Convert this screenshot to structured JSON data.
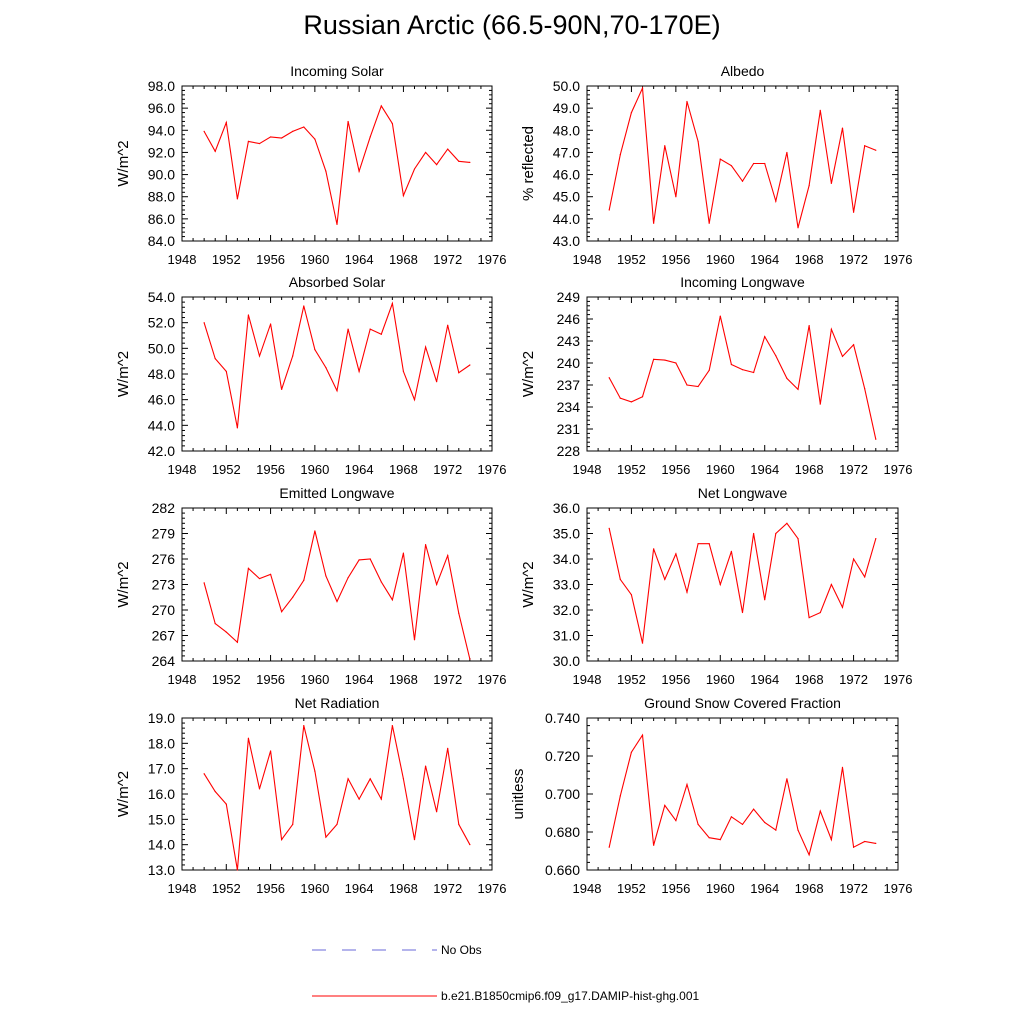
{
  "page": {
    "title": "Russian Arctic (66.5-90N,70-170E)"
  },
  "legend": {
    "entries": [
      {
        "label": "No Obs",
        "color": "#6a6ad8",
        "style": "dashed"
      },
      {
        "label": "b.e21.B1850cmip6.f09_g17.DAMIP-hist-ghg.001",
        "color": "#ff0000",
        "style": "solid"
      }
    ]
  },
  "chart_data": [
    {
      "type": "line",
      "title": "Incoming Solar",
      "ylabel": "W/m^2",
      "xlim": [
        1948,
        1976
      ],
      "ylim": [
        84,
        98
      ],
      "xticks": [
        "1948",
        "1952",
        "1956",
        "1960",
        "1964",
        "1968",
        "1972",
        "1976"
      ],
      "yticks": [
        "84.0",
        "86.0",
        "88.0",
        "90.0",
        "92.0",
        "94.0",
        "96.0",
        "98.0"
      ],
      "x": [
        1950,
        1951,
        1952,
        1953,
        1954,
        1955,
        1956,
        1957,
        1958,
        1959,
        1960,
        1961,
        1962,
        1963,
        1964,
        1965,
        1966,
        1967,
        1968,
        1969,
        1970,
        1971,
        1972,
        1973,
        1974
      ],
      "series": [
        {
          "color": "#ff0000",
          "values": [
            93.9,
            92.1,
            94.7,
            87.8,
            93.0,
            92.8,
            93.4,
            93.3,
            93.9,
            94.3,
            93.2,
            90.3,
            85.5,
            94.8,
            90.3,
            93.4,
            96.2,
            94.6,
            88.1,
            90.5,
            92.0,
            90.9,
            92.3,
            91.2,
            91.1
          ]
        }
      ]
    },
    {
      "type": "line",
      "title": "Albedo",
      "ylabel": "% reflected",
      "xlim": [
        1948,
        1976
      ],
      "ylim": [
        43,
        50
      ],
      "xticks": [
        "1948",
        "1952",
        "1956",
        "1960",
        "1964",
        "1968",
        "1972",
        "1976"
      ],
      "yticks": [
        "43.0",
        "44.0",
        "45.0",
        "46.0",
        "47.0",
        "48.0",
        "49.0",
        "50.0"
      ],
      "x": [
        1950,
        1951,
        1952,
        1953,
        1954,
        1955,
        1956,
        1957,
        1958,
        1959,
        1960,
        1961,
        1962,
        1963,
        1964,
        1965,
        1966,
        1967,
        1968,
        1969,
        1970,
        1971,
        1972,
        1973,
        1974
      ],
      "series": [
        {
          "color": "#ff0000",
          "values": [
            44.4,
            46.9,
            48.8,
            49.9,
            43.8,
            47.3,
            45.0,
            49.3,
            47.5,
            43.8,
            46.7,
            46.4,
            45.7,
            46.5,
            46.5,
            44.8,
            47.0,
            43.6,
            45.5,
            48.9,
            45.6,
            48.1,
            44.3,
            47.3,
            47.1
          ]
        }
      ]
    },
    {
      "type": "line",
      "title": "Absorbed Solar",
      "ylabel": "W/m^2",
      "xlim": [
        1948,
        1976
      ],
      "ylim": [
        42,
        54
      ],
      "xticks": [
        "1948",
        "1952",
        "1956",
        "1960",
        "1964",
        "1968",
        "1972",
        "1976"
      ],
      "yticks": [
        "42.0",
        "44.0",
        "46.0",
        "48.0",
        "50.0",
        "52.0",
        "54.0"
      ],
      "x": [
        1950,
        1951,
        1952,
        1953,
        1954,
        1955,
        1956,
        1957,
        1958,
        1959,
        1960,
        1961,
        1962,
        1963,
        1964,
        1965,
        1966,
        1967,
        1968,
        1969,
        1970,
        1971,
        1972,
        1973,
        1974
      ],
      "series": [
        {
          "color": "#ff0000",
          "values": [
            52.0,
            49.2,
            48.2,
            43.8,
            52.6,
            49.4,
            51.9,
            46.8,
            49.4,
            53.3,
            49.9,
            48.5,
            46.7,
            51.5,
            48.2,
            51.5,
            51.1,
            53.5,
            48.2,
            46.0,
            50.1,
            47.4,
            51.8,
            48.1,
            48.7
          ]
        }
      ]
    },
    {
      "type": "line",
      "title": "Incoming Longwave",
      "ylabel": "W/m^2",
      "xlim": [
        1948,
        1976
      ],
      "ylim": [
        228,
        249
      ],
      "xticks": [
        "1948",
        "1952",
        "1956",
        "1960",
        "1964",
        "1968",
        "1972",
        "1976"
      ],
      "yticks": [
        "228",
        "231",
        "234",
        "237",
        "240",
        "243",
        "246",
        "249"
      ],
      "x": [
        1950,
        1951,
        1952,
        1953,
        1954,
        1955,
        1956,
        1957,
        1958,
        1959,
        1960,
        1961,
        1962,
        1963,
        1964,
        1965,
        1966,
        1967,
        1968,
        1969,
        1970,
        1971,
        1972,
        1973,
        1974
      ],
      "series": [
        {
          "color": "#ff0000",
          "values": [
            238.0,
            235.2,
            234.7,
            235.4,
            240.5,
            240.4,
            240.0,
            237.0,
            236.8,
            239.0,
            246.4,
            239.8,
            239.1,
            238.7,
            243.6,
            241.0,
            237.9,
            236.4,
            245.1,
            234.4,
            244.6,
            240.9,
            242.5,
            236.5,
            229.6
          ]
        }
      ]
    },
    {
      "type": "line",
      "title": "Emitted Longwave",
      "ylabel": "W/m^2",
      "xlim": [
        1948,
        1976
      ],
      "ylim": [
        264,
        282
      ],
      "xticks": [
        "1948",
        "1952",
        "1956",
        "1960",
        "1964",
        "1968",
        "1972",
        "1976"
      ],
      "yticks": [
        "264",
        "267",
        "270",
        "273",
        "276",
        "279",
        "282"
      ],
      "x": [
        1950,
        1951,
        1952,
        1953,
        1954,
        1955,
        1956,
        1957,
        1958,
        1959,
        1960,
        1961,
        1962,
        1963,
        1964,
        1965,
        1966,
        1967,
        1968,
        1969,
        1970,
        1971,
        1972,
        1973,
        1974
      ],
      "series": [
        {
          "color": "#ff0000",
          "values": [
            273.2,
            268.4,
            267.4,
            266.2,
            274.9,
            273.7,
            274.2,
            269.8,
            271.5,
            273.5,
            279.3,
            274.0,
            271.0,
            273.8,
            275.9,
            276.0,
            273.3,
            271.2,
            276.7,
            266.5,
            277.7,
            273.0,
            276.4,
            269.6,
            264.2
          ]
        }
      ]
    },
    {
      "type": "line",
      "title": "Net Longwave",
      "ylabel": "W/m^2",
      "xlim": [
        1948,
        1976
      ],
      "ylim": [
        30,
        36
      ],
      "xticks": [
        "1948",
        "1952",
        "1956",
        "1960",
        "1964",
        "1968",
        "1972",
        "1976"
      ],
      "yticks": [
        "30.0",
        "31.0",
        "32.0",
        "33.0",
        "34.0",
        "35.0",
        "36.0"
      ],
      "x": [
        1950,
        1951,
        1952,
        1953,
        1954,
        1955,
        1956,
        1957,
        1958,
        1959,
        1960,
        1961,
        1962,
        1963,
        1964,
        1965,
        1966,
        1967,
        1968,
        1969,
        1970,
        1971,
        1972,
        1973,
        1974
      ],
      "series": [
        {
          "color": "#ff0000",
          "values": [
            35.2,
            33.2,
            32.6,
            30.7,
            34.4,
            33.2,
            34.2,
            32.7,
            34.6,
            34.6,
            33.0,
            34.3,
            31.9,
            35.0,
            32.4,
            35.0,
            35.4,
            34.8,
            31.7,
            31.9,
            33.0,
            32.1,
            34.0,
            33.3,
            34.8
          ]
        }
      ]
    },
    {
      "type": "line",
      "title": "Net Radiation",
      "ylabel": "W/m^2",
      "xlim": [
        1948,
        1976
      ],
      "ylim": [
        13,
        19
      ],
      "xticks": [
        "1948",
        "1952",
        "1956",
        "1960",
        "1964",
        "1968",
        "1972",
        "1976"
      ],
      "yticks": [
        "13.0",
        "14.0",
        "15.0",
        "16.0",
        "17.0",
        "18.0",
        "19.0"
      ],
      "x": [
        1950,
        1951,
        1952,
        1953,
        1954,
        1955,
        1956,
        1957,
        1958,
        1959,
        1960,
        1961,
        1962,
        1963,
        1964,
        1965,
        1966,
        1967,
        1968,
        1969,
        1970,
        1971,
        1972,
        1973,
        1974
      ],
      "series": [
        {
          "color": "#ff0000",
          "values": [
            16.8,
            16.1,
            15.6,
            13.0,
            18.2,
            16.2,
            17.7,
            14.2,
            14.8,
            18.7,
            16.9,
            14.3,
            14.8,
            16.6,
            15.8,
            16.6,
            15.8,
            18.7,
            16.6,
            14.2,
            17.1,
            15.3,
            17.8,
            14.8,
            14.0
          ]
        }
      ]
    },
    {
      "type": "line",
      "title": "Ground Snow Covered Fraction",
      "ylabel": "unitless",
      "xlim": [
        1948,
        1976
      ],
      "ylim": [
        0.66,
        0.74
      ],
      "xticks": [
        "1948",
        "1952",
        "1956",
        "1960",
        "1964",
        "1968",
        "1972",
        "1976"
      ],
      "yticks": [
        "0.660",
        "0.680",
        "0.700",
        "0.720",
        "0.740"
      ],
      "x": [
        1950,
        1951,
        1952,
        1953,
        1954,
        1955,
        1956,
        1957,
        1958,
        1959,
        1960,
        1961,
        1962,
        1963,
        1964,
        1965,
        1966,
        1967,
        1968,
        1969,
        1970,
        1971,
        1972,
        1973,
        1974
      ],
      "series": [
        {
          "color": "#ff0000",
          "values": [
            0.672,
            0.699,
            0.722,
            0.731,
            0.673,
            0.694,
            0.686,
            0.705,
            0.684,
            0.677,
            0.676,
            0.688,
            0.684,
            0.692,
            0.685,
            0.681,
            0.708,
            0.681,
            0.668,
            0.691,
            0.676,
            0.714,
            0.672,
            0.675,
            0.674
          ]
        }
      ]
    }
  ]
}
